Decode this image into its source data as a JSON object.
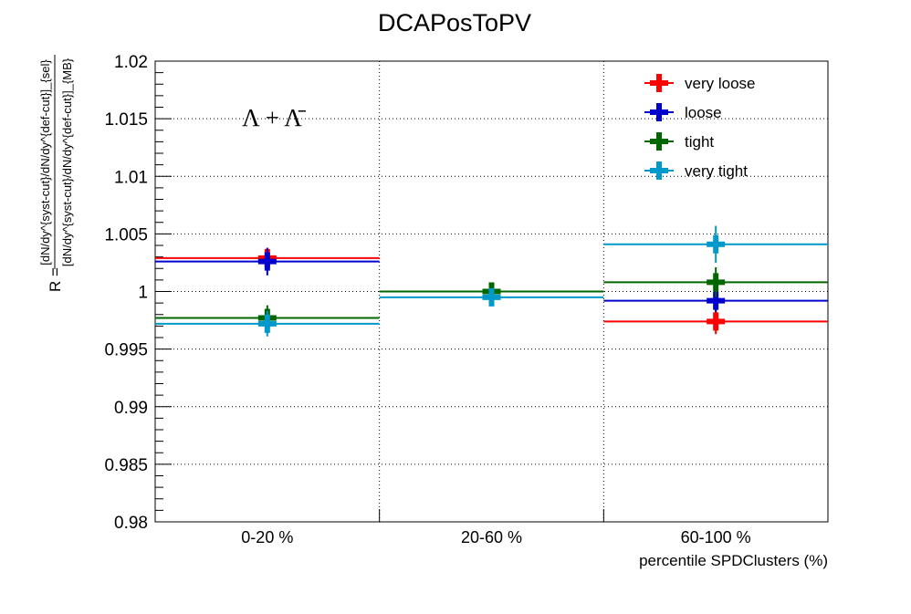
{
  "chart_data": {
    "type": "scatter",
    "title": "DCAPosToPV",
    "xlabel": "percentile SPDClusters (%)",
    "ylabel": {
      "prefix": "R = ",
      "numerator": "[dN/dy^{syst-cut}/dN/dy^{def-cut}]_{sel}",
      "denominator": "[dN/dy^{syst-cut}/dN/dy^{def-cut}]_{MB}"
    },
    "annotation": "Λ + Λ̄",
    "categories": [
      "0-20 %",
      "20-60 %",
      "60-100 %"
    ],
    "ylim": [
      0.98,
      1.02
    ],
    "yticks": [
      "0.98",
      "0.985",
      "0.99",
      "0.995",
      "1",
      "1.005",
      "1.01",
      "1.015",
      "1.02"
    ],
    "grid": true,
    "legend_position": "top-right",
    "series": [
      {
        "name": "very loose",
        "color": "#ff0000",
        "values": [
          1.0029,
          1.0,
          0.9974
        ],
        "errors": [
          0.0008,
          0.0004,
          0.0011
        ]
      },
      {
        "name": "loose",
        "color": "#0000cc",
        "values": [
          1.0026,
          1.0,
          0.9992
        ],
        "errors": [
          0.0012,
          0.0004,
          0.001
        ]
      },
      {
        "name": "tight",
        "color": "#006600",
        "values": [
          0.9977,
          1.0,
          1.0008
        ],
        "errors": [
          0.0011,
          0.0006,
          0.0013
        ]
      },
      {
        "name": "very tight",
        "color": "#0099cc",
        "values": [
          0.9972,
          0.9995,
          1.0041
        ],
        "errors": [
          0.0011,
          0.0006,
          0.0016
        ]
      }
    ]
  }
}
